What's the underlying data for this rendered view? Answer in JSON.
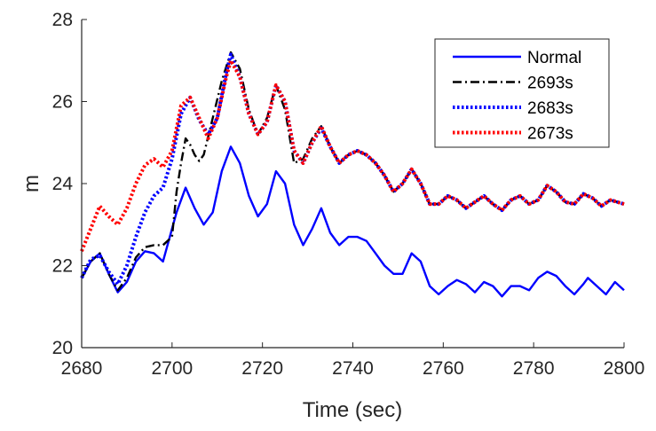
{
  "chart_data": {
    "type": "line",
    "title": "",
    "xlabel": "Time (sec)",
    "ylabel": "m",
    "xlim": [
      2680,
      2800
    ],
    "ylim": [
      20,
      28
    ],
    "xticks": [
      2680,
      2700,
      2720,
      2740,
      2760,
      2780,
      2800
    ],
    "yticks": [
      20,
      22,
      24,
      26,
      28
    ],
    "grid": false,
    "legend_position": "top-right",
    "series": [
      {
        "name": "Normal",
        "color": "#0000FF",
        "style": "solid",
        "x": [
          2680,
          2682,
          2684,
          2686,
          2688,
          2690,
          2692,
          2694,
          2696,
          2698,
          2699,
          2701,
          2703,
          2705,
          2707,
          2709,
          2711,
          2713,
          2715,
          2717,
          2719,
          2721,
          2723,
          2725,
          2727,
          2729,
          2731,
          2733,
          2735,
          2737,
          2739,
          2741,
          2743,
          2745,
          2747,
          2749,
          2751,
          2753,
          2755,
          2757,
          2759,
          2761,
          2763,
          2765,
          2767,
          2769,
          2771,
          2773,
          2775,
          2777,
          2779,
          2781,
          2783,
          2785,
          2787,
          2789,
          2791,
          2792,
          2794,
          2796,
          2798,
          2800
        ],
        "values": [
          21.7,
          22.1,
          22.3,
          21.8,
          21.35,
          21.6,
          22.1,
          22.35,
          22.3,
          22.1,
          22.5,
          23.3,
          23.9,
          23.4,
          23.0,
          23.3,
          24.3,
          24.9,
          24.5,
          23.7,
          23.2,
          23.5,
          24.3,
          24.0,
          23.0,
          22.5,
          22.9,
          23.4,
          22.8,
          22.5,
          22.7,
          22.7,
          22.6,
          22.3,
          22.0,
          21.8,
          21.8,
          22.3,
          22.1,
          21.5,
          21.3,
          21.5,
          21.65,
          21.55,
          21.35,
          21.6,
          21.5,
          21.25,
          21.5,
          21.5,
          21.4,
          21.7,
          21.85,
          21.75,
          21.5,
          21.3,
          21.55,
          21.7,
          21.5,
          21.3,
          21.6,
          21.4
        ]
      },
      {
        "name": "2693s",
        "color": "#000000",
        "style": "dashdot",
        "x": [
          2680,
          2682,
          2684,
          2686,
          2688,
          2690,
          2692,
          2694,
          2696,
          2698,
          2700,
          2701,
          2702,
          2703,
          2704,
          2705,
          2706,
          2707,
          2709,
          2711,
          2713,
          2715,
          2717,
          2719,
          2721,
          2723,
          2725,
          2727,
          2729,
          2731,
          2733,
          2735,
          2737,
          2739,
          2741,
          2743,
          2745,
          2747,
          2749,
          2751,
          2753,
          2755,
          2757,
          2759,
          2761,
          2763,
          2765,
          2767,
          2769,
          2771,
          2773,
          2775,
          2777,
          2779,
          2781,
          2783,
          2785,
          2787,
          2789,
          2791,
          2793,
          2795,
          2797,
          2800
        ],
        "values": [
          21.7,
          22.1,
          22.3,
          21.8,
          21.4,
          21.7,
          22.2,
          22.45,
          22.5,
          22.5,
          22.7,
          23.8,
          24.5,
          25.1,
          24.95,
          24.7,
          24.55,
          24.7,
          25.6,
          26.5,
          27.2,
          26.8,
          25.8,
          25.2,
          25.6,
          26.4,
          25.8,
          24.5,
          24.6,
          25.1,
          25.4,
          24.9,
          24.5,
          24.7,
          24.8,
          24.7,
          24.5,
          24.2,
          23.8,
          24.0,
          24.35,
          24.0,
          23.5,
          23.5,
          23.7,
          23.6,
          23.4,
          23.55,
          23.7,
          23.5,
          23.35,
          23.6,
          23.7,
          23.5,
          23.6,
          23.95,
          23.8,
          23.55,
          23.5,
          23.75,
          23.65,
          23.45,
          23.6,
          23.5
        ]
      },
      {
        "name": "2683s",
        "color": "#0000FF",
        "style": "dotted",
        "x": [
          2680,
          2682,
          2684,
          2686,
          2688,
          2690,
          2692,
          2694,
          2696,
          2698,
          2700,
          2702,
          2704,
          2706,
          2708,
          2710,
          2712,
          2713,
          2715,
          2717,
          2719,
          2721,
          2723,
          2725,
          2727,
          2729,
          2731,
          2733,
          2735,
          2737,
          2739,
          2741,
          2743,
          2745,
          2747,
          2749,
          2751,
          2753,
          2755,
          2757,
          2759,
          2761,
          2763,
          2765,
          2767,
          2769,
          2771,
          2773,
          2775,
          2777,
          2779,
          2781,
          2783,
          2785,
          2787,
          2789,
          2791,
          2793,
          2795,
          2797,
          2800
        ],
        "values": [
          21.7,
          22.15,
          22.25,
          21.85,
          21.55,
          22.0,
          22.7,
          23.3,
          23.7,
          23.9,
          24.6,
          25.7,
          26.1,
          25.55,
          25.2,
          25.6,
          26.7,
          27.15,
          26.6,
          25.7,
          25.2,
          25.5,
          26.4,
          26.0,
          24.8,
          24.5,
          25.0,
          25.35,
          24.9,
          24.5,
          24.7,
          24.8,
          24.7,
          24.5,
          24.2,
          23.8,
          24.0,
          24.35,
          24.0,
          23.5,
          23.5,
          23.7,
          23.6,
          23.4,
          23.55,
          23.7,
          23.5,
          23.35,
          23.6,
          23.7,
          23.5,
          23.6,
          23.95,
          23.8,
          23.55,
          23.5,
          23.75,
          23.65,
          23.45,
          23.6,
          23.5
        ]
      },
      {
        "name": "2673s",
        "color": "#FF0000",
        "style": "dotted",
        "x": [
          2680,
          2682,
          2684,
          2686,
          2688,
          2690,
          2692,
          2694,
          2696,
          2698,
          2700,
          2702,
          2704,
          2706,
          2708,
          2710,
          2712,
          2713,
          2715,
          2717,
          2719,
          2721,
          2723,
          2725,
          2727,
          2729,
          2731,
          2733,
          2735,
          2737,
          2739,
          2741,
          2743,
          2745,
          2747,
          2749,
          2751,
          2753,
          2755,
          2757,
          2759,
          2761,
          2763,
          2765,
          2767,
          2769,
          2771,
          2773,
          2775,
          2777,
          2779,
          2781,
          2783,
          2785,
          2787,
          2789,
          2791,
          2793,
          2795,
          2797,
          2800
        ],
        "values": [
          22.35,
          22.9,
          23.45,
          23.2,
          23.0,
          23.4,
          24.0,
          24.45,
          24.6,
          24.4,
          24.8,
          25.9,
          26.1,
          25.6,
          25.1,
          25.6,
          26.6,
          27.0,
          26.6,
          25.7,
          25.2,
          25.5,
          26.4,
          26.0,
          24.8,
          24.5,
          25.0,
          25.4,
          24.9,
          24.5,
          24.7,
          24.8,
          24.7,
          24.5,
          24.2,
          23.8,
          24.0,
          24.35,
          24.0,
          23.5,
          23.5,
          23.7,
          23.6,
          23.4,
          23.55,
          23.7,
          23.5,
          23.35,
          23.6,
          23.7,
          23.5,
          23.6,
          23.95,
          23.8,
          23.55,
          23.5,
          23.75,
          23.65,
          23.45,
          23.6,
          23.5
        ]
      }
    ]
  }
}
